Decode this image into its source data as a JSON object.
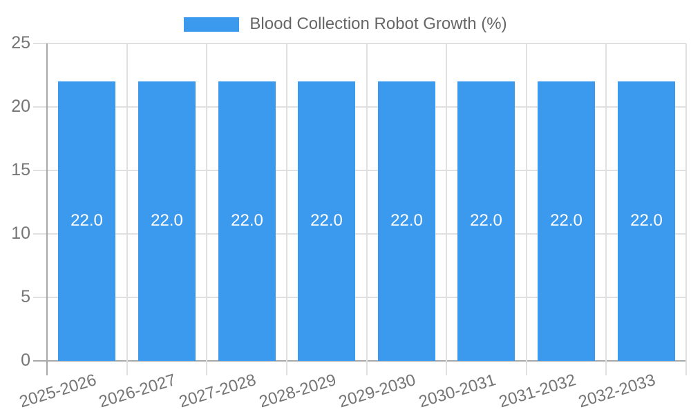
{
  "chart_data": {
    "type": "bar",
    "title": "Blood Collection Robot Growth (%)",
    "legend": {
      "position": "top",
      "entries": [
        {
          "label": "Blood Collection Robot Growth (%)",
          "color": "#3b99ee"
        }
      ]
    },
    "categories": [
      "2025-2026",
      "2026-2027",
      "2027-2028",
      "2028-2029",
      "2029-2030",
      "2030-2031",
      "2031-2032",
      "2032-2033"
    ],
    "values": [
      22.0,
      22.0,
      22.0,
      22.0,
      22.0,
      22.0,
      22.0,
      22.0
    ],
    "value_labels": [
      "22.0",
      "22.0",
      "22.0",
      "22.0",
      "22.0",
      "22.0",
      "22.0",
      "22.0"
    ],
    "xlabel": "",
    "ylabel": "",
    "ylim": [
      0,
      25
    ],
    "y_ticks": [
      0,
      5,
      10,
      15,
      20,
      25
    ],
    "y_tick_labels": [
      "0",
      "5",
      "10",
      "15",
      "20",
      "25"
    ],
    "grid": true,
    "colors": {
      "bar": "#3b99ee",
      "gridline": "#e0e0e0",
      "axis": "#a8a8a8",
      "tick_text": "#757575",
      "legend_text": "#666666",
      "bar_value_text": "#ffffff",
      "background": "#ffffff"
    }
  }
}
